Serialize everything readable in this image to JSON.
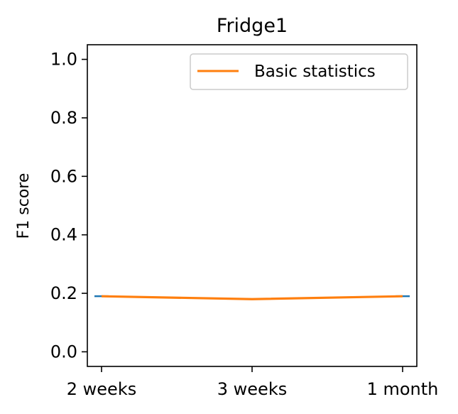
{
  "chart_data": {
    "type": "line",
    "title": "Fridge1",
    "xlabel": "",
    "ylabel": "F1 score",
    "categories": [
      "2 weeks",
      "3 weeks",
      "1 month"
    ],
    "ylim": [
      -0.05,
      1.05
    ],
    "yticks": [
      "0.0",
      "0.2",
      "0.4",
      "0.6",
      "0.8",
      "1.0"
    ],
    "series": [
      {
        "name": "Basic statistics",
        "values": [
          0.19,
          0.18,
          0.19
        ],
        "color": "#ff7f0e"
      }
    ],
    "error_markers": {
      "values": [
        0.19,
        0.18,
        0.19
      ],
      "color": "#1f77b4"
    },
    "legend": {
      "placement": "top-right"
    },
    "grid": false
  }
}
